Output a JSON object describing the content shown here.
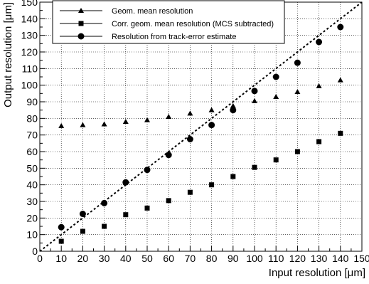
{
  "chart_data": {
    "type": "scatter",
    "title": "",
    "xlabel": "Input resolution [μm]",
    "ylabel": "Output resolution [μm]",
    "xlim": [
      0,
      150
    ],
    "ylim": [
      0,
      150
    ],
    "xticks": [
      0,
      10,
      20,
      30,
      40,
      50,
      60,
      70,
      80,
      90,
      100,
      110,
      120,
      130,
      140,
      150
    ],
    "yticks": [
      0,
      10,
      20,
      30,
      40,
      50,
      60,
      70,
      80,
      90,
      100,
      110,
      120,
      130,
      140,
      150
    ],
    "grid": true,
    "legend_position": "top-left",
    "reference_line": {
      "style": "dashed",
      "x": [
        0,
        150
      ],
      "y": [
        0,
        150
      ]
    },
    "x": [
      10,
      20,
      30,
      40,
      50,
      60,
      70,
      80,
      90,
      100,
      110,
      120,
      130,
      140
    ],
    "series": [
      {
        "name": "Geom. mean resolution",
        "marker": "triangle",
        "values": [
          75.5,
          76,
          76.5,
          78,
          79,
          81,
          83,
          85,
          87.5,
          90.5,
          93,
          96,
          99.5,
          103
        ]
      },
      {
        "name": "Corr. geom. mean resolution (MCS subtracted)",
        "marker": "square",
        "values": [
          6,
          12,
          15,
          22,
          26,
          30.5,
          35.5,
          40,
          45,
          50.5,
          55,
          60,
          66,
          71
        ]
      },
      {
        "name": "Resolution from track-error estimate",
        "marker": "circle",
        "values": [
          14.5,
          22.5,
          29,
          41.5,
          49,
          58,
          67.5,
          76,
          85,
          96.5,
          105,
          113.5,
          126,
          135
        ]
      }
    ]
  }
}
